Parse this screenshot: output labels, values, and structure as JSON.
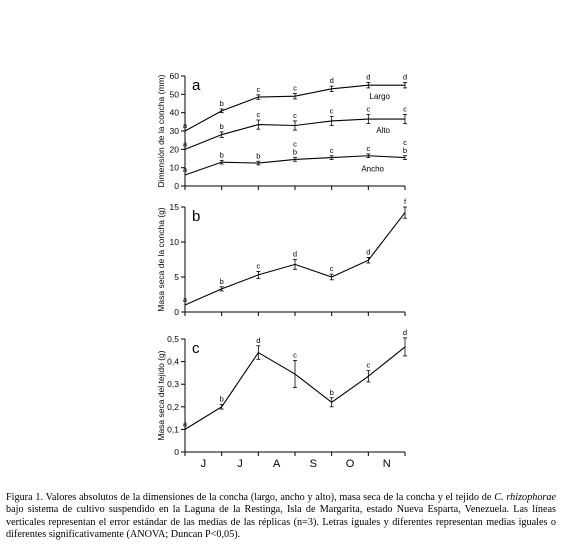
{
  "caption": {
    "prefix": "Figura 1. Valores absolutos de la dimensiones de la concha (largo, ancho y alto), masa seca de la concha y el tejido de ",
    "species": "C. rhizophorae",
    "suffix": " bajo sistema de cultivo suspendido en la Laguna de la Restinga, Isla de Margarita, estado Nueva Esparta, Venezuela. Las líneas verticales representan el error estándar de las medias de las réplicas (n=3). Letras iguales y diferentes representan medias iguales o diferentes significativamente (ANOVA; Duncan P<0,05)."
  },
  "x_axis": {
    "tick_labels": [
      "J",
      "J",
      "A",
      "S",
      "O",
      "N"
    ]
  },
  "chart_data": [
    {
      "type": "line",
      "panel_label": "a",
      "ylabel": "Dimensión de la concha (mm)",
      "ylim": [
        0,
        60
      ],
      "yticks": [
        0,
        10,
        20,
        30,
        40,
        50,
        60
      ],
      "ytick_labels": [
        "0",
        "10",
        "20",
        "30",
        "40",
        "50",
        "60"
      ],
      "x": [
        0,
        1,
        2,
        3,
        4,
        5,
        6
      ],
      "series": [
        {
          "name": "Largo",
          "values": [
            30,
            41,
            48.5,
            49,
            53,
            55,
            55
          ],
          "errors": [
            0,
            1,
            1.2,
            1.5,
            1.5,
            1.5,
            1.5
          ],
          "letters": [
            "a",
            "b",
            "c",
            "c",
            "d",
            "d",
            "d"
          ]
        },
        {
          "name": "Alto",
          "values": [
            20,
            28,
            33.5,
            33,
            35.5,
            36.5,
            36.5
          ],
          "errors": [
            0,
            1.5,
            2.5,
            2.5,
            2.5,
            2.5,
            2.5
          ],
          "letters": [
            "a",
            "b",
            "c",
            "c",
            "c",
            "c",
            "c"
          ]
        },
        {
          "name": "Ancho",
          "values": [
            6,
            13,
            12.5,
            14.5,
            15.5,
            16.5,
            15.5
          ],
          "errors": [
            0,
            1,
            1,
            1,
            1,
            1,
            1
          ],
          "letters": [
            "a",
            "b",
            "b",
            "cb",
            "c",
            "c",
            "cb"
          ]
        }
      ]
    },
    {
      "type": "line",
      "panel_label": "b",
      "ylabel": "Masa seca de la concha (g)",
      "ylim": [
        0,
        15
      ],
      "yticks": [
        0,
        5,
        10,
        15
      ],
      "ytick_labels": [
        "0",
        "5",
        "10",
        "15"
      ],
      "x": [
        0,
        1,
        2,
        3,
        4,
        5,
        6
      ],
      "series": [
        {
          "values": [
            1,
            3.3,
            5.3,
            6.8,
            5,
            7.4,
            14.2
          ],
          "errors": [
            0,
            0.3,
            0.5,
            0.7,
            0.4,
            0.4,
            0.8
          ],
          "letters": [
            "a",
            "b",
            "c",
            "d",
            "c",
            "d",
            "f"
          ]
        }
      ]
    },
    {
      "type": "line",
      "panel_label": "c",
      "ylabel": "Masa seca del tejido (g)",
      "ylim": [
        0,
        0.5
      ],
      "yticks": [
        0,
        0.1,
        0.2,
        0.3,
        0.4,
        0.5
      ],
      "ytick_labels": [
        "0",
        "0,1",
        "0,2",
        "0,3",
        "0,4",
        "0,5"
      ],
      "x": [
        0,
        1,
        2,
        3,
        4,
        5,
        6
      ],
      "series": [
        {
          "values": [
            0.1,
            0.2,
            0.44,
            0.345,
            0.22,
            0.335,
            0.465
          ],
          "errors": [
            0,
            0.01,
            0.03,
            0.06,
            0.02,
            0.025,
            0.04
          ],
          "letters": [
            "a",
            "b",
            "d",
            "c",
            "b",
            "c",
            "d"
          ]
        }
      ]
    }
  ]
}
